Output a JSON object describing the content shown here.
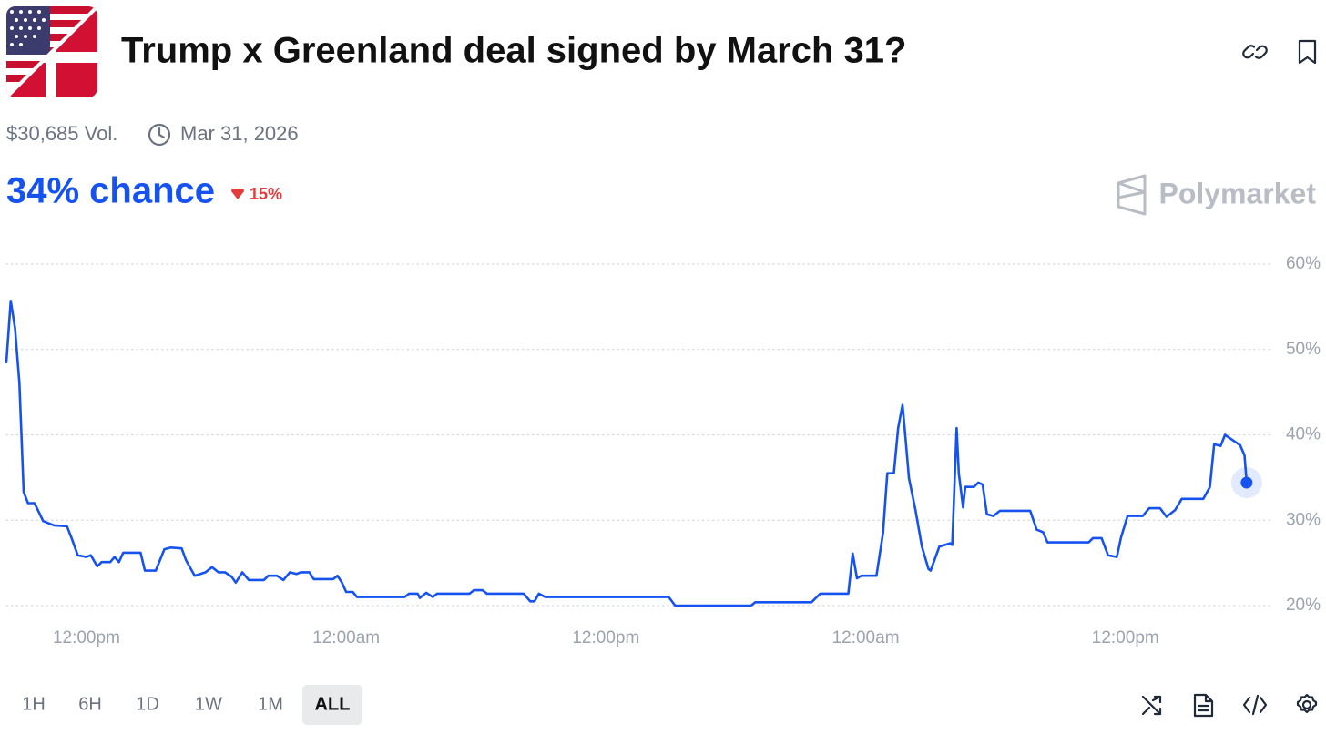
{
  "header": {
    "title": "Trump x Greenland deal signed by March 31?",
    "volume": "$30,685 Vol.",
    "end_date": "Mar 31, 2026",
    "chance": "34% chance",
    "change": "15%",
    "brand": "Polymarket"
  },
  "chart_data": {
    "type": "line",
    "color": "#1652f0",
    "grid": true,
    "x": [
      8.3,
      8.5,
      8.7,
      8.9,
      9.1,
      9.3,
      9.6,
      10.0,
      10.5,
      11.1,
      11.3,
      11.6,
      12.0,
      12.2,
      12.5,
      12.7,
      13.1,
      13.3,
      13.5,
      13.7,
      14.5,
      14.7,
      15.2,
      15.6,
      15.9,
      16.4,
      16.6,
      17.0,
      17.5,
      17.8,
      18.1,
      18.4,
      18.7,
      18.9,
      19.2,
      19.5,
      20.2,
      20.4,
      20.8,
      21.1,
      21.4,
      21.7,
      21.9,
      22.3,
      22.5,
      23.4,
      23.6,
      23.8,
      24.0,
      24.3,
      24.5,
      26.7,
      26.9,
      27.3,
      27.4,
      27.7,
      28.0,
      28.2,
      29.7,
      29.9,
      30.3,
      30.5,
      32.2,
      32.5,
      32.7,
      32.9,
      33.2,
      38.9,
      39.2,
      42.7,
      42.9,
      45.5,
      45.9,
      47.2,
      47.4,
      47.6,
      47.8,
      48.5,
      48.8,
      49.0,
      49.3,
      49.5,
      49.7,
      49.8,
      50.0,
      50.3,
      50.6,
      50.9,
      51.0,
      51.4,
      51.9,
      52.0,
      52.2,
      52.3,
      52.5,
      52.6,
      53.0,
      53.2,
      53.4,
      53.6,
      53.9,
      54.2,
      55.6,
      55.9,
      56.2,
      56.4,
      58.3,
      58.5,
      58.9,
      59.2,
      59.6,
      59.8,
      60.1,
      60.8,
      61.1,
      61.6,
      61.9,
      62.3,
      62.6,
      63.6,
      63.9,
      64.1,
      64.4,
      64.6,
      65.0,
      65.3,
      65.5,
      65.6
    ],
    "values": [
      48.5,
      55.7,
      52.5,
      46.1,
      33.3,
      32,
      32,
      29.9,
      29.4,
      29.3,
      28,
      25.9,
      25.7,
      25.9,
      24.6,
      25.1,
      25.1,
      25.7,
      25.1,
      26.2,
      26.2,
      24.1,
      24.1,
      26.6,
      26.8,
      26.7,
      25.3,
      23.5,
      23.9,
      24.5,
      23.9,
      23.9,
      23.4,
      22.7,
      23.9,
      23,
      23,
      23.5,
      23.5,
      23,
      23.9,
      23.7,
      23.9,
      23.9,
      23.1,
      23.1,
      23.5,
      22.7,
      21.6,
      21.6,
      21,
      21,
      21.4,
      21.4,
      20.9,
      21.5,
      21,
      21.4,
      21.4,
      21.8,
      21.8,
      21.4,
      21.4,
      20.5,
      20.5,
      21.4,
      21,
      21,
      20,
      20,
      20.4,
      20.4,
      21.4,
      21.4,
      26.1,
      23.2,
      23.5,
      23.5,
      28.5,
      35.5,
      35.5,
      40.8,
      43.5,
      40.8,
      34.9,
      31.2,
      26.9,
      24.3,
      24.1,
      26.9,
      27.3,
      27.1,
      40.8,
      35.5,
      31.5,
      33.9,
      33.9,
      34.4,
      34.2,
      30.7,
      30.5,
      31.1,
      31.1,
      28.9,
      28.6,
      27.4,
      27.4,
      27.9,
      27.9,
      25.9,
      25.7,
      28,
      30.5,
      30.5,
      31.4,
      31.4,
      30.4,
      31.2,
      32.5,
      32.5,
      33.9,
      38.9,
      38.7,
      40,
      39.3,
      38.8,
      37.6,
      34.4
    ],
    "xlim": [
      8.3,
      66.7
    ],
    "ylim": [
      20,
      60
    ],
    "xticks": [
      {
        "value": 12,
        "label": "12:00pm"
      },
      {
        "value": 24,
        "label": "12:00am"
      },
      {
        "value": 36,
        "label": "12:00pm"
      },
      {
        "value": 48,
        "label": "12:00am"
      },
      {
        "value": 60,
        "label": "12:00pm"
      }
    ],
    "yticks": [
      {
        "value": 20,
        "label": "20%"
      },
      {
        "value": 30,
        "label": "30%"
      },
      {
        "value": 40,
        "label": "40%"
      },
      {
        "value": 50,
        "label": "50%"
      },
      {
        "value": 60,
        "label": "60%"
      }
    ]
  },
  "range_buttons": {
    "options": [
      "1H",
      "6H",
      "1D",
      "1W",
      "1M",
      "ALL"
    ],
    "active": 5
  }
}
